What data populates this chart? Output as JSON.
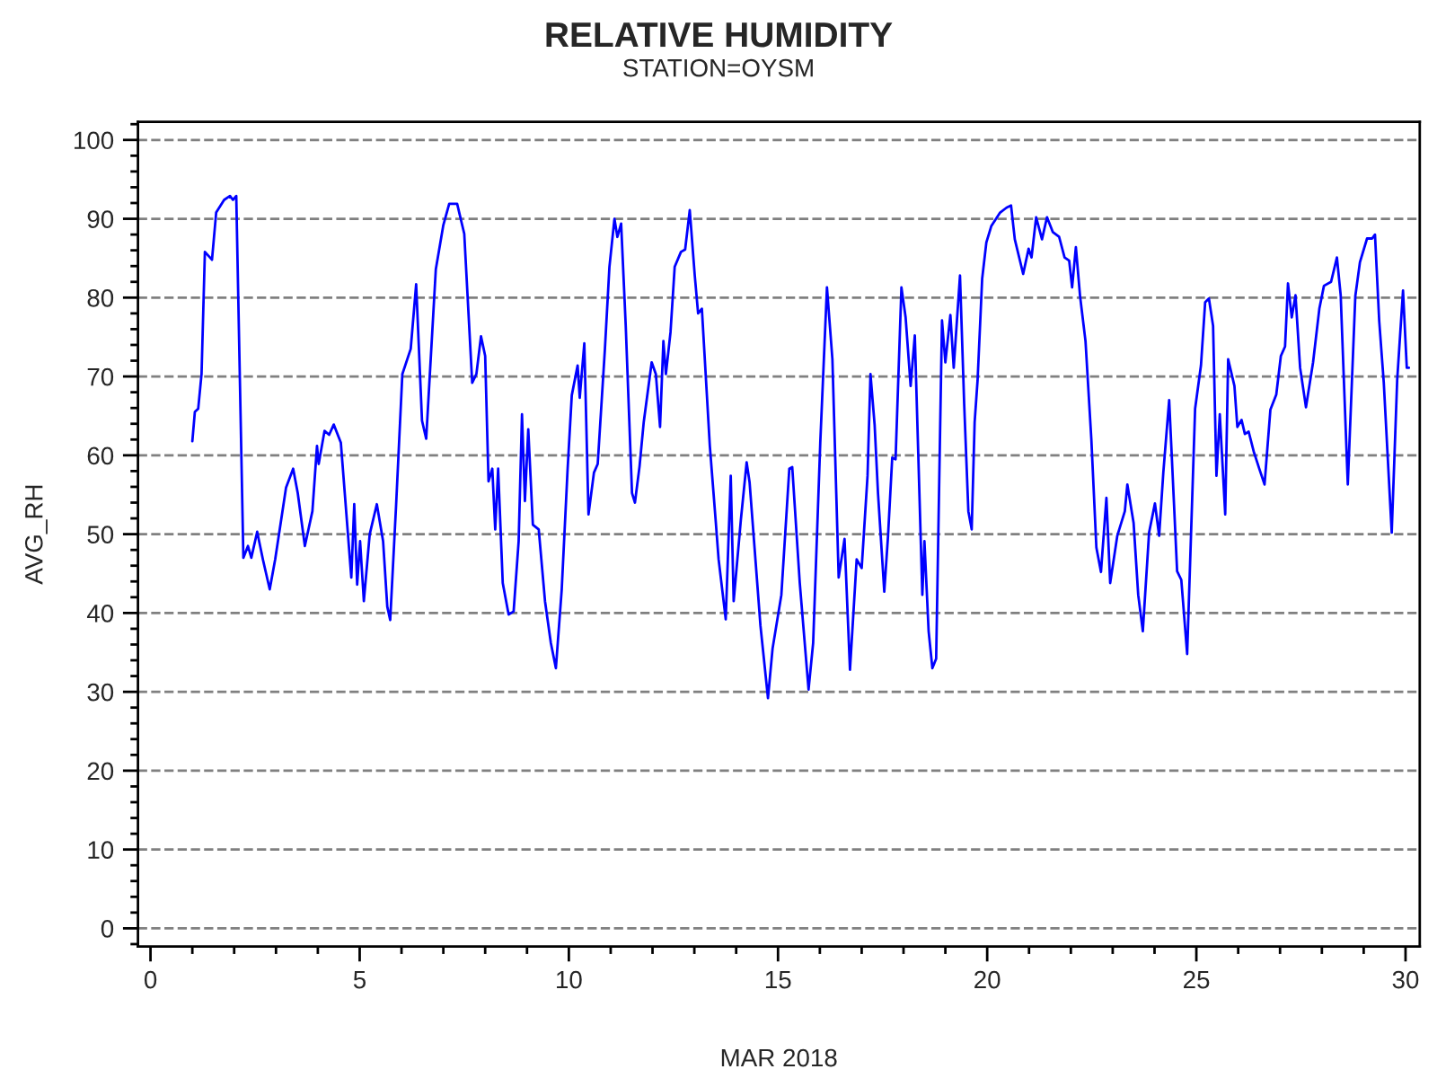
{
  "chart_data": {
    "type": "line",
    "title": "RELATIVE HUMIDITY",
    "subtitle": "STATION=OYSM",
    "xlabel": "MAR 2018",
    "ylabel": "AVG_RH",
    "xlim": [
      -0.3,
      30.34
    ],
    "ylim": [
      -2.3,
      102.3
    ],
    "xticks": [
      0,
      5,
      10,
      15,
      20,
      25,
      30
    ],
    "yticks": [
      0,
      10,
      20,
      30,
      40,
      50,
      60,
      70,
      80,
      90,
      100
    ],
    "grid": "y",
    "legend": false,
    "marker": "none",
    "line_style": "solid",
    "series": [
      {
        "color": "#0000ff",
        "x": [
          1.0,
          1.06,
          1.14,
          1.22,
          1.3,
          1.47,
          1.57,
          1.76,
          1.9,
          1.97,
          2.05,
          2.22,
          2.33,
          2.41,
          2.55,
          2.69,
          2.85,
          2.98,
          3.24,
          3.41,
          3.52,
          3.69,
          3.87,
          3.98,
          4.02,
          4.16,
          4.27,
          4.38,
          4.55,
          4.8,
          4.87,
          4.94,
          5.01,
          5.1,
          5.24,
          5.41,
          5.56,
          5.66,
          5.73,
          5.87,
          6.02,
          6.22,
          6.35,
          6.49,
          6.59,
          6.82,
          7.0,
          7.14,
          7.33,
          7.5,
          7.69,
          7.79,
          7.9,
          8.0,
          8.08,
          8.17,
          8.24,
          8.31,
          8.42,
          8.56,
          8.68,
          8.8,
          8.88,
          8.95,
          9.03,
          9.14,
          9.28,
          9.43,
          9.57,
          9.69,
          9.83,
          9.97,
          10.07,
          10.21,
          10.26,
          10.37,
          10.47,
          10.6,
          10.69,
          10.86,
          10.97,
          11.09,
          11.16,
          11.25,
          11.36,
          11.51,
          11.58,
          11.69,
          11.79,
          11.98,
          12.08,
          12.18,
          12.26,
          12.32,
          12.43,
          12.53,
          12.68,
          12.78,
          12.89,
          13.01,
          13.09,
          13.18,
          13.37,
          13.51,
          13.58,
          13.75,
          13.87,
          13.94,
          14.11,
          14.25,
          14.32,
          14.58,
          14.76,
          14.87,
          15.08,
          15.27,
          15.34,
          15.52,
          15.73,
          15.84,
          16.01,
          16.17,
          16.3,
          16.45,
          16.59,
          16.72,
          16.88,
          17.0,
          17.14,
          17.21,
          17.31,
          17.39,
          17.54,
          17.63,
          17.73,
          17.81,
          17.95,
          18.05,
          18.17,
          18.27,
          18.45,
          18.5,
          18.6,
          18.69,
          18.78,
          18.92,
          19.0,
          19.12,
          19.2,
          19.35,
          19.45,
          19.55,
          19.63,
          19.7,
          19.77,
          19.88,
          19.98,
          20.1,
          20.31,
          20.46,
          20.57,
          20.66,
          20.86,
          20.99,
          21.06,
          21.17,
          21.31,
          21.43,
          21.57,
          21.72,
          21.85,
          21.96,
          22.03,
          22.12,
          22.22,
          22.35,
          22.49,
          22.61,
          22.72,
          22.85,
          22.94,
          23.11,
          23.29,
          23.35,
          23.5,
          23.61,
          23.72,
          23.87,
          24.01,
          24.11,
          24.21,
          24.35,
          24.54,
          24.64,
          24.78,
          24.97,
          25.11,
          25.21,
          25.3,
          25.4,
          25.48,
          25.56,
          25.69,
          25.76,
          25.91,
          25.98,
          26.08,
          26.16,
          26.25,
          26.37,
          26.51,
          26.63,
          26.77,
          26.91,
          27.02,
          27.12,
          27.19,
          27.28,
          27.37,
          27.48,
          27.62,
          27.79,
          27.94,
          28.05,
          28.22,
          28.36,
          28.45,
          28.62,
          28.8,
          28.91,
          29.08,
          29.2,
          29.27,
          29.37,
          29.48,
          29.67,
          29.8,
          29.94,
          30.03,
          30.08
        ],
        "values": [
          61.8,
          65.5,
          65.9,
          70.3,
          85.8,
          84.8,
          90.8,
          92.4,
          92.9,
          92.4,
          92.9,
          47.0,
          48.5,
          47.0,
          50.3,
          46.7,
          43.0,
          46.8,
          55.9,
          58.3,
          55.2,
          48.5,
          52.9,
          61.2,
          58.9,
          63.1,
          62.6,
          63.9,
          61.6,
          44.5,
          53.8,
          43.6,
          49.1,
          41.5,
          50.0,
          53.8,
          49.1,
          40.8,
          39.1,
          53.6,
          70.3,
          73.5,
          81.7,
          64.4,
          62.1,
          83.6,
          89.2,
          91.9,
          91.9,
          88.1,
          69.2,
          70.3,
          75.1,
          72.6,
          56.7,
          58.3,
          50.6,
          58.3,
          43.8,
          39.8,
          40.2,
          49.1,
          65.2,
          54.2,
          63.3,
          51.2,
          50.6,
          41.5,
          36.2,
          33.0,
          43.0,
          58.2,
          67.6,
          71.4,
          67.3,
          74.2,
          52.5,
          57.8,
          58.9,
          73.3,
          83.9,
          90.0,
          87.7,
          89.4,
          76.4,
          55.2,
          54.0,
          58.6,
          64.2,
          71.8,
          70.3,
          63.6,
          74.5,
          70.3,
          75.6,
          83.9,
          85.8,
          86.1,
          91.1,
          82.8,
          78.0,
          78.6,
          61.2,
          51.7,
          46.8,
          39.2,
          57.4,
          41.5,
          51.7,
          59.1,
          56.6,
          38.4,
          29.2,
          35.5,
          42.3,
          58.3,
          58.5,
          43.8,
          30.3,
          36.2,
          61.6,
          81.3,
          72.2,
          44.5,
          49.4,
          32.8,
          46.8,
          45.7,
          57.4,
          70.3,
          63.8,
          55.2,
          42.7,
          49.8,
          59.7,
          59.5,
          81.3,
          77.5,
          68.8,
          75.2,
          42.3,
          49.1,
          37.7,
          33.0,
          34.2,
          77.1,
          71.8,
          77.8,
          71.1,
          82.8,
          66.5,
          52.9,
          50.6,
          64.2,
          69.5,
          82.4,
          87.0,
          89.1,
          90.8,
          91.4,
          91.7,
          87.4,
          83.0,
          86.2,
          85.1,
          90.2,
          87.4,
          90.2,
          88.3,
          87.7,
          85.1,
          84.7,
          81.3,
          86.4,
          80.2,
          74.5,
          62.0,
          48.3,
          45.2,
          54.6,
          43.8,
          49.8,
          52.9,
          56.3,
          51.4,
          42.3,
          37.7,
          50.2,
          53.9,
          49.8,
          57.8,
          67.0,
          45.3,
          44.2,
          34.8,
          65.9,
          71.4,
          79.4,
          79.9,
          76.4,
          57.4,
          65.2,
          52.5,
          72.2,
          68.8,
          63.6,
          64.5,
          62.7,
          63.0,
          60.5,
          58.2,
          56.3,
          65.8,
          67.7,
          72.6,
          73.8,
          81.8,
          77.5,
          80.3,
          71.1,
          66.1,
          71.8,
          78.6,
          81.5,
          82.0,
          85.1,
          80.3,
          56.3,
          80.2,
          84.5,
          87.5,
          87.5,
          88.0,
          77.1,
          69.2,
          50.2,
          69.5,
          80.9,
          71.1,
          71.1
        ]
      }
    ]
  }
}
